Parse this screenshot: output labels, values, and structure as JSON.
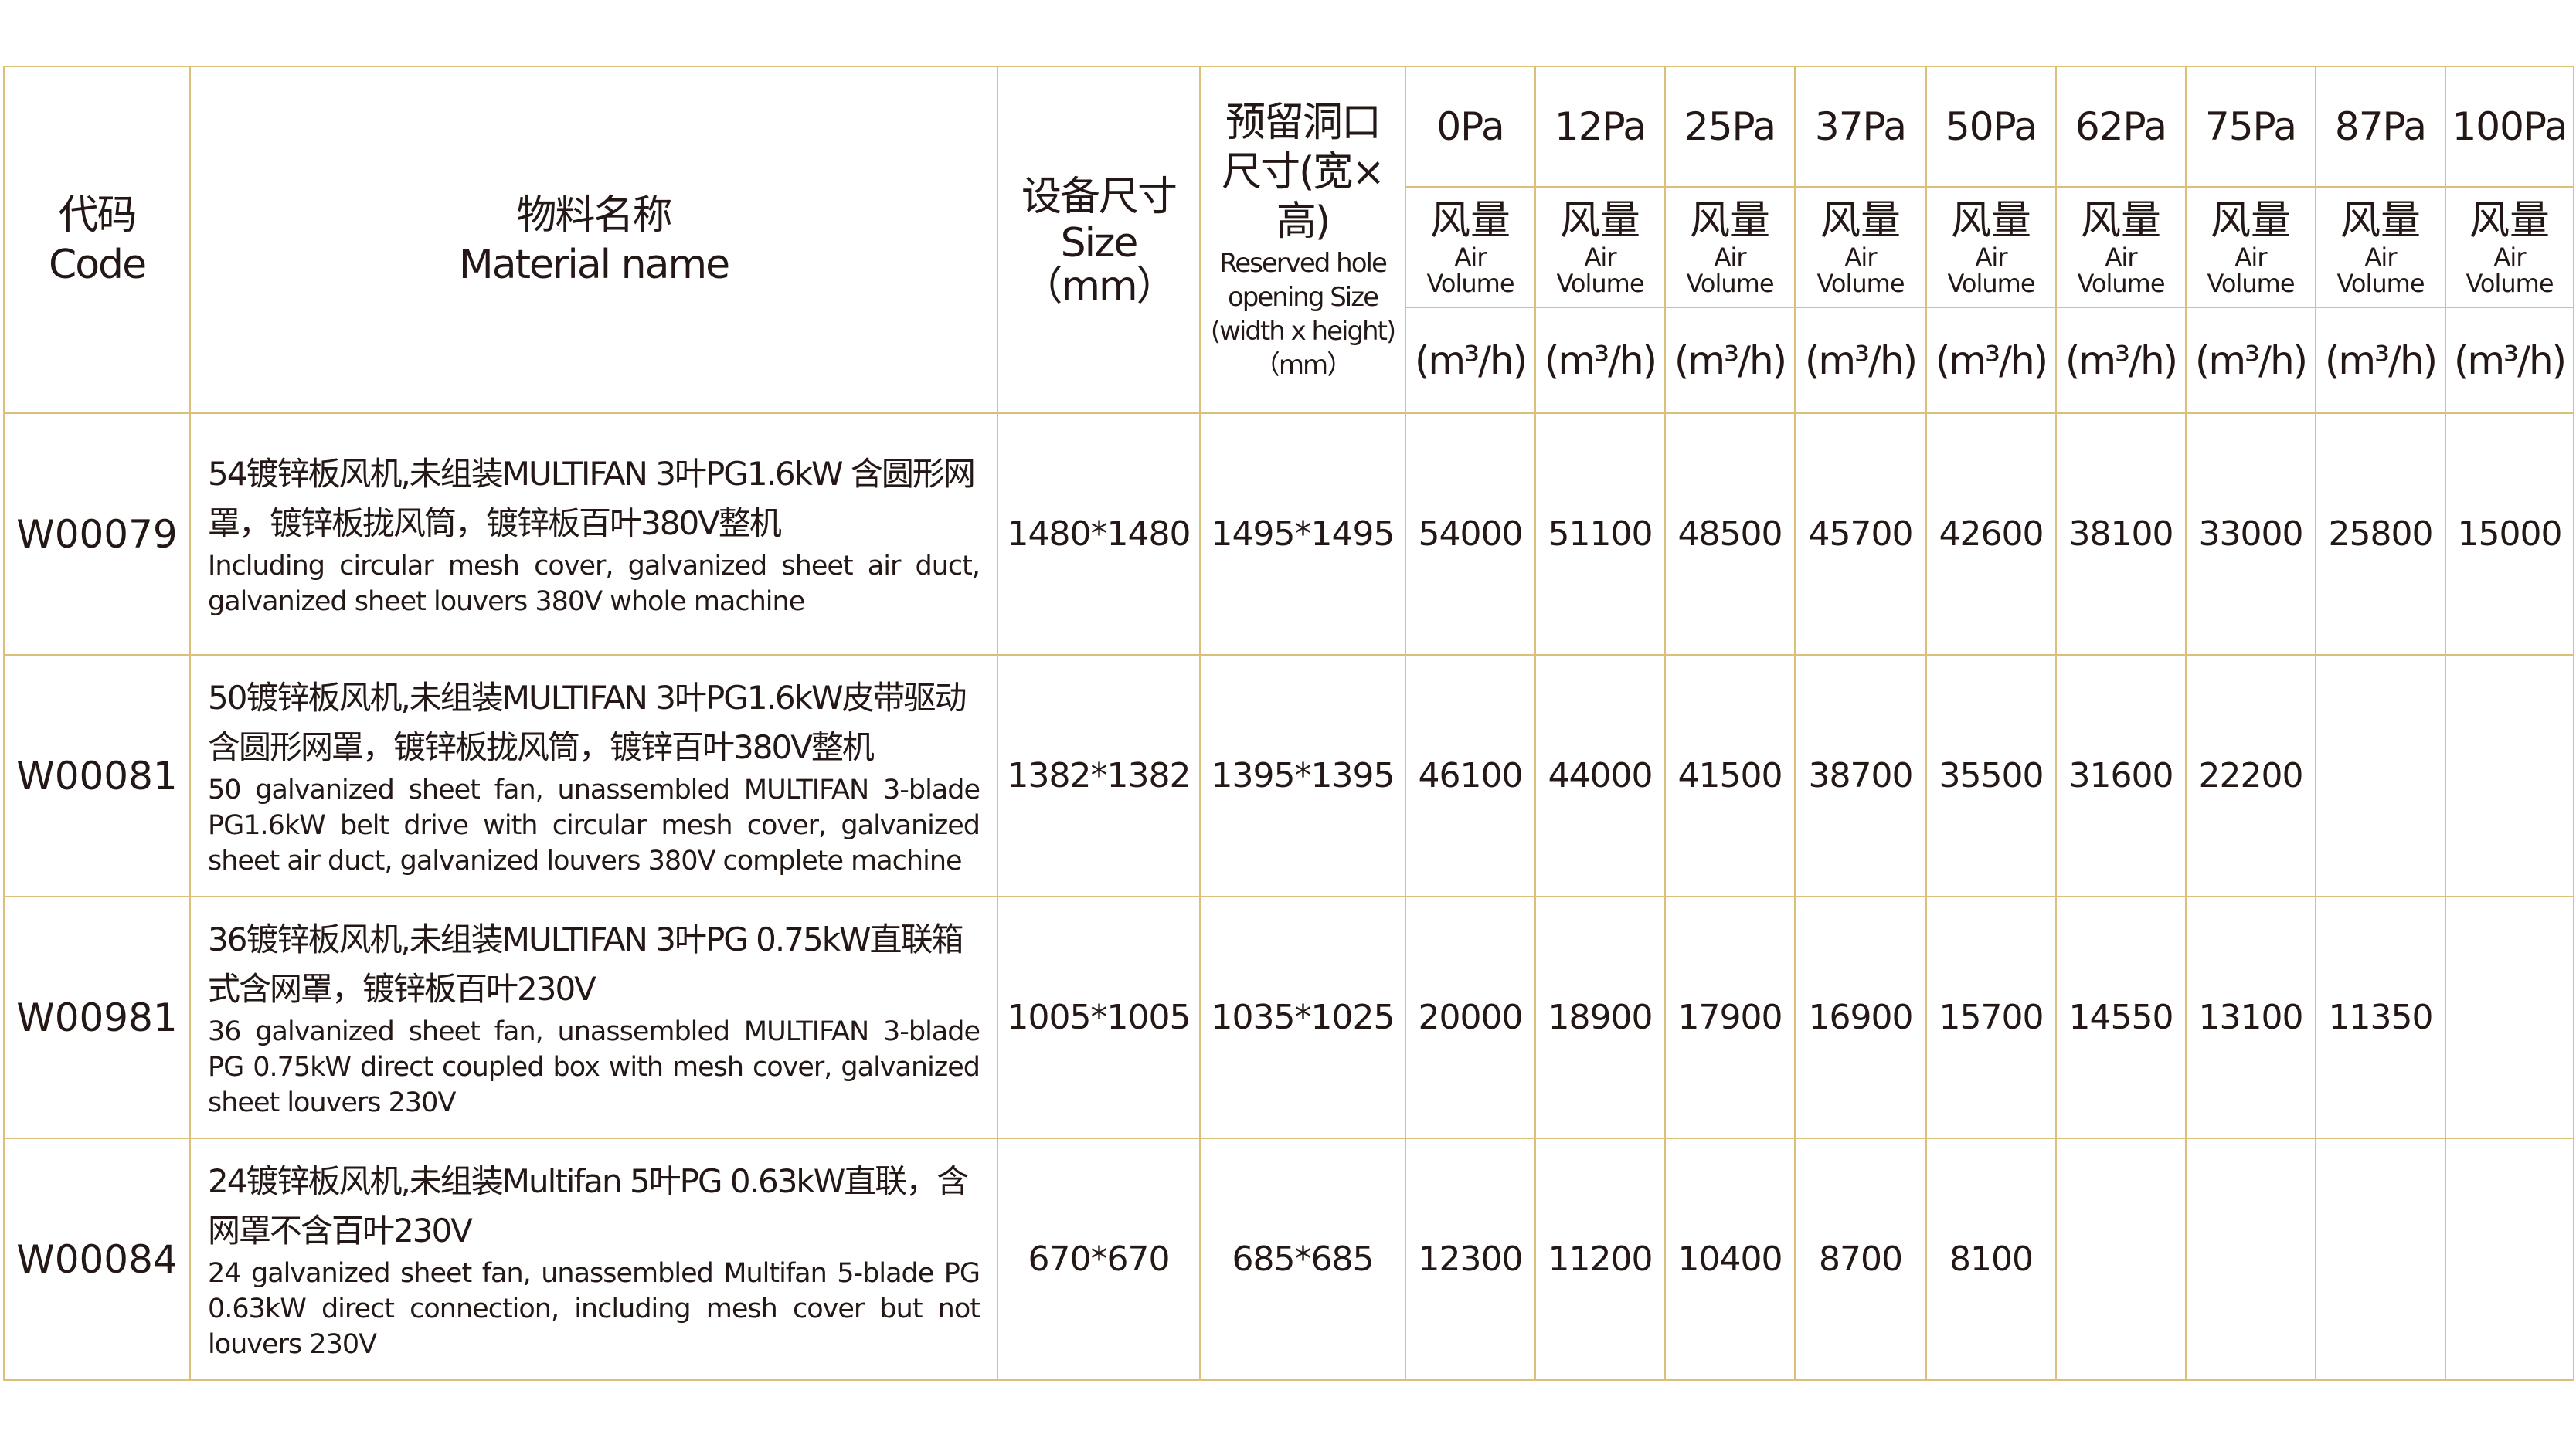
{
  "header": {
    "code_zh": "代码",
    "code_en": "Code",
    "name_zh": "物料名称",
    "name_en": "Material name",
    "size_zh": "设备尺寸",
    "size_en": "Size",
    "size_unit": "（mm）",
    "hole_zh1": "预留洞口",
    "hole_zh2": "尺寸(宽×高)",
    "hole_en1": "Reserved hole",
    "hole_en2": "opening Size",
    "hole_en3": "(width x height)",
    "hole_unit": "（mm）",
    "pressures": [
      "0Pa",
      "12Pa",
      "25Pa",
      "37Pa",
      "50Pa",
      "62Pa",
      "75Pa",
      "87Pa",
      "100Pa"
    ],
    "flow_zh": "风量",
    "flow_en1": "Air",
    "flow_en2": "Volume",
    "flow_unit": "(m³/h)"
  },
  "rows": [
    {
      "code": "W00079",
      "zh": "54镀锌板风机,未组装MULTIFAN 3叶PG1.6kW 含圆形网罩，镀锌板拢风筒，镀锌板百叶380V整机",
      "en": "Including circular mesh cover, galvanized sheet air duct, galvanized sheet louvers 380V whole machine",
      "size": "1480*1480",
      "hole": "1495*1495",
      "values": [
        "54000",
        "51100",
        "48500",
        "45700",
        "42600",
        "38100",
        "33000",
        "25800",
        "15000"
      ]
    },
    {
      "code": "W00081",
      "zh": "50镀锌板风机,未组装MULTIFAN 3叶PG1.6kW皮带驱动含圆形网罩，镀锌板拢风筒，镀锌百叶380V整机",
      "en": "50 galvanized sheet fan, unassembled MULTIFAN 3-blade PG1.6kW belt drive with circular mesh cover, galvanized sheet air duct, galvanized louvers 380V complete machine",
      "size": "1382*1382",
      "hole": "1395*1395",
      "values": [
        "46100",
        "44000",
        "41500",
        "38700",
        "35500",
        "31600",
        "22200",
        "",
        ""
      ]
    },
    {
      "code": "W00981",
      "zh": "36镀锌板风机,未组装MULTIFAN 3叶PG 0.75kW直联箱式含网罩，镀锌板百叶230V",
      "en": "36 galvanized sheet fan, unassembled MULTIFAN 3-blade PG 0.75kW direct coupled box with mesh cover, galvanized sheet louvers 230V",
      "size": "1005*1005",
      "hole": "1035*1025",
      "values": [
        "20000",
        "18900",
        "17900",
        "16900",
        "15700",
        "14550",
        "13100",
        "11350",
        ""
      ]
    },
    {
      "code": "W00084",
      "zh": "24镀锌板风机,未组装Multifan 5叶PG 0.63kW直联，含网罩不含百叶230V",
      "en": "24 galvanized sheet fan, unassembled Multifan 5-blade PG 0.63kW direct connection, including mesh cover but not louvers 230V",
      "size": "670*670",
      "hole": "685*685",
      "values": [
        "12300",
        "11200",
        "10400",
        "8700",
        "8100",
        "",
        "",
        "",
        ""
      ]
    }
  ],
  "colors": {
    "border": "#dcc07a",
    "text": "#231815"
  }
}
